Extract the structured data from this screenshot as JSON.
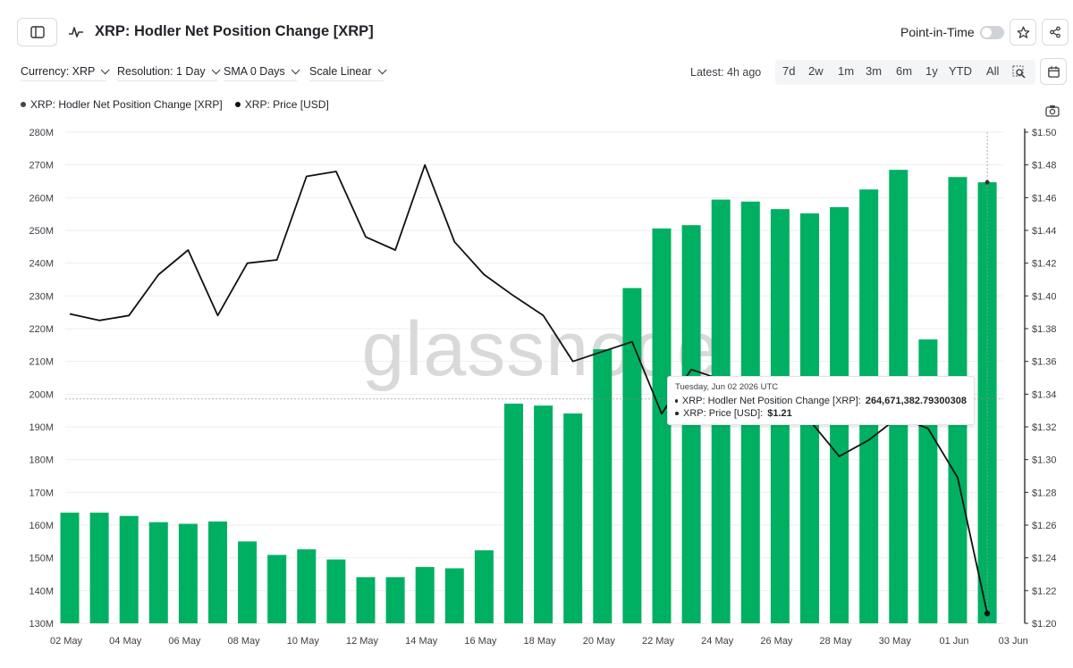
{
  "header": {
    "title": "XRP: Hodler Net Position Change [XRP]",
    "point_in_time_label": "Point-in-Time",
    "point_in_time_on": false
  },
  "toolbar": {
    "currency": "Currency: XRP",
    "resolution": "Resolution: 1 Day",
    "sma": "SMA 0 Days",
    "scale": "Scale Linear",
    "latest": "Latest: 4h ago",
    "ranges": [
      "7d",
      "2w",
      "1m",
      "3m",
      "6m",
      "1y",
      "YTD",
      "All"
    ]
  },
  "icons": [
    "sidebar-toggle-icon",
    "metric-icon",
    "star-icon",
    "share-icon",
    "zoom-select-icon",
    "calendar-icon",
    "camera-icon"
  ],
  "watermark": "glassnode",
  "tooltip": {
    "date": "Tuesday, Jun 02 2026 UTC",
    "rows": [
      {
        "label": "XRP: Hodler Net Position Change [XRP]:",
        "value": "264,671,382.79300308"
      },
      {
        "label": "XRP: Price [USD]:",
        "value": "$1.21"
      }
    ]
  },
  "colors": {
    "bar": "#00b062",
    "price_line": "#111111",
    "grid": "#eceef1",
    "axis_text": "#3b3f45"
  },
  "chart_data": {
    "type": "bar",
    "legend": [
      {
        "name": "XRP: Hodler Net Position Change [XRP]",
        "color": "#444444"
      },
      {
        "name": "XRP: Price [USD]",
        "color": "#111111"
      }
    ],
    "x_tick_labels": [
      "02 May",
      "04 May",
      "06 May",
      "08 May",
      "10 May",
      "12 May",
      "14 May",
      "16 May",
      "18 May",
      "20 May",
      "22 May",
      "24 May",
      "26 May",
      "28 May",
      "30 May",
      "01 Jun",
      "03 Jun"
    ],
    "x_start": "2026-05-02",
    "y_left": {
      "min": 130,
      "max": 280,
      "step": 10,
      "suffix": "M"
    },
    "y_right": {
      "min": 1.2,
      "max": 1.5,
      "step": 0.02,
      "prefix": "$"
    },
    "series": [
      {
        "name": "XRP: Hodler Net Position Change [XRP]",
        "type": "bar",
        "axis": "left",
        "unit": "M",
        "values": [
          163.8,
          163.8,
          162.8,
          160.9,
          160.4,
          161.1,
          155.0,
          150.9,
          152.6,
          149.5,
          144.1,
          144.1,
          147.2,
          146.8,
          152.3,
          197.1,
          196.5,
          194.1,
          213.7,
          232.4,
          250.6,
          251.6,
          259.4,
          258.8,
          256.5,
          255.2,
          257.1,
          262.5,
          268.5,
          216.7,
          266.3,
          264.7
        ]
      },
      {
        "name": "XRP: Price [USD]",
        "type": "line",
        "axis": "right",
        "values": [
          1.389,
          1.385,
          1.388,
          1.413,
          1.428,
          1.388,
          1.42,
          1.422,
          1.473,
          1.476,
          1.436,
          1.428,
          1.48,
          1.433,
          1.413,
          1.4,
          1.388,
          1.36,
          1.366,
          1.372,
          1.328,
          1.355,
          1.349,
          1.348,
          1.34,
          1.324,
          1.302,
          1.312,
          1.326,
          1.319,
          1.289,
          1.206
        ]
      }
    ],
    "grid": true,
    "legend_position": "top-left"
  }
}
